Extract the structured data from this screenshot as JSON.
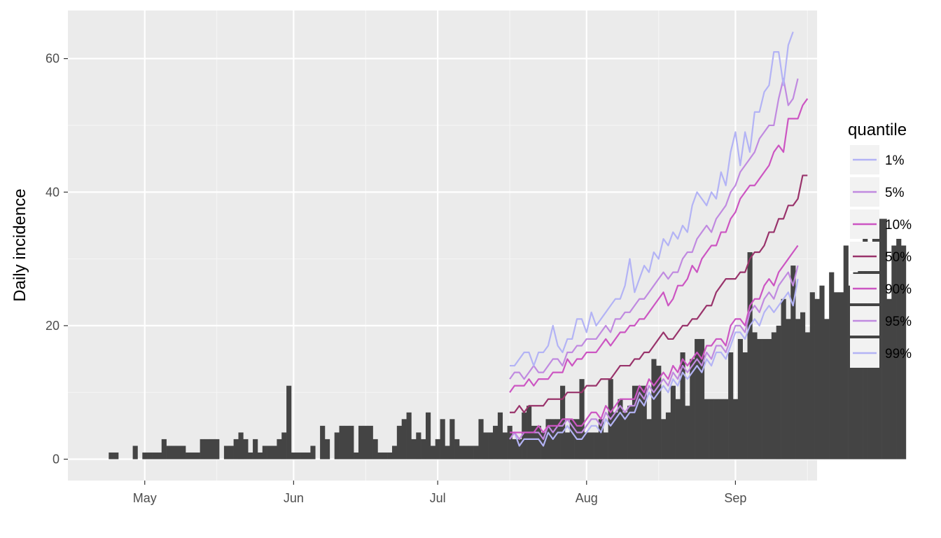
{
  "chart_data": {
    "type": "bar",
    "ylabel": "Daily incidence",
    "xlabel": "",
    "ylim": [
      -3.2,
      67.2
    ],
    "xlim": [
      "2014-04-15",
      "2014-09-18"
    ],
    "y_ticks": [
      0,
      20,
      40,
      60
    ],
    "x_ticks": [
      {
        "date": "2014-05-01",
        "label": "May"
      },
      {
        "date": "2014-06-01",
        "label": "Jun"
      },
      {
        "date": "2014-07-01",
        "label": "Jul"
      },
      {
        "date": "2014-08-01",
        "label": "Aug"
      },
      {
        "date": "2014-09-01",
        "label": "Sep"
      }
    ],
    "x_minor_ticks": [
      "2014-05-16",
      "2014-06-16",
      "2014-07-16",
      "2014-08-16",
      "2014-09-16"
    ],
    "grid": true,
    "bars": {
      "start_date": "2014-04-24",
      "color": "#444444",
      "values": [
        1,
        1,
        0,
        0,
        0,
        2,
        0,
        1,
        1,
        1,
        1,
        3,
        2,
        2,
        2,
        2,
        1,
        1,
        1,
        3,
        3,
        3,
        3,
        0,
        2,
        2,
        3,
        4,
        3,
        1,
        3,
        1,
        2,
        2,
        2,
        3,
        4,
        11,
        1,
        1,
        1,
        1,
        2,
        0,
        5,
        3,
        0,
        4,
        5,
        5,
        5,
        1,
        5,
        5,
        5,
        3,
        1,
        1,
        1,
        2,
        5,
        6,
        7,
        3,
        4,
        3,
        7,
        2,
        3,
        6,
        2,
        6,
        3,
        2,
        2,
        2,
        2,
        6,
        4,
        4,
        5,
        7,
        4,
        5,
        3,
        3,
        7,
        8,
        5,
        5,
        4,
        6,
        6,
        6,
        11,
        4,
        6,
        6,
        12,
        4,
        4,
        4,
        6,
        4,
        12,
        7,
        9,
        7,
        8,
        11,
        11,
        11,
        6,
        15,
        14,
        6,
        7,
        11,
        9,
        16,
        8,
        15,
        18,
        18,
        9,
        9,
        9,
        9,
        9,
        16,
        9,
        18,
        16,
        31,
        19,
        18,
        18,
        18,
        19,
        20,
        24,
        21,
        29,
        21,
        22,
        19,
        25,
        24,
        26,
        21,
        28,
        25,
        25,
        32,
        26,
        28,
        32,
        37,
        30,
        36,
        36,
        36,
        24,
        32,
        33,
        32
      ]
    },
    "legend": {
      "title": "quantile",
      "position": "right",
      "entries": [
        {
          "label": "1%",
          "color": "#b3b3f5"
        },
        {
          "label": "5%",
          "color": "#c08ae0"
        },
        {
          "label": "10%",
          "color": "#cc55c2"
        },
        {
          "label": "50%",
          "color": "#99336b"
        },
        {
          "label": "90%",
          "color": "#cc55c2"
        },
        {
          "label": "95%",
          "color": "#c08ae0"
        },
        {
          "label": "99%",
          "color": "#b3b3f5"
        }
      ]
    },
    "series": [
      {
        "name": "1%",
        "color": "#b3b3f5",
        "start_date": "2014-07-16",
        "values": [
          3,
          4,
          2,
          3,
          3,
          3,
          3,
          2,
          4,
          3,
          4,
          4,
          5,
          4,
          3,
          3,
          4,
          5,
          5,
          4,
          6,
          5,
          6,
          7,
          6,
          7,
          7,
          9,
          8,
          10,
          9,
          10,
          11,
          10,
          12,
          11,
          13,
          12,
          13,
          14,
          13,
          15,
          14,
          16,
          16,
          15,
          17,
          19,
          19,
          18,
          20,
          21,
          20,
          22,
          23,
          22,
          23,
          24,
          25,
          23,
          27
        ]
      },
      {
        "name": "5%",
        "color": "#c08ae0",
        "start_date": "2014-07-16",
        "values": [
          3,
          4,
          3,
          4,
          4,
          4,
          4,
          3,
          5,
          4,
          5,
          5,
          6,
          5,
          4,
          4,
          5,
          6,
          6,
          5,
          7,
          6,
          7,
          8,
          7,
          8,
          8,
          10,
          9,
          11,
          10,
          11,
          12,
          11,
          13,
          12,
          14,
          13,
          14,
          15,
          14,
          16,
          15,
          17,
          17,
          16,
          18,
          20,
          20,
          19,
          22,
          23,
          22,
          24,
          25,
          24,
          26,
          27,
          28,
          26,
          29
        ]
      },
      {
        "name": "10%",
        "color": "#cc55c2",
        "start_date": "2014-07-16",
        "values": [
          4,
          4,
          4,
          4,
          4,
          4,
          5,
          4,
          5,
          5,
          5,
          6,
          6,
          6,
          5,
          5,
          6,
          7,
          7,
          6,
          8,
          7,
          8,
          9,
          9,
          9,
          9,
          11,
          10,
          12,
          11,
          12,
          13,
          12,
          14,
          13,
          15,
          14,
          15,
          16,
          15,
          17,
          17,
          18,
          18,
          17,
          20,
          21,
          21,
          20,
          23,
          24,
          24,
          26,
          27,
          26,
          28,
          29,
          30,
          31,
          32
        ]
      },
      {
        "name": "50%",
        "color": "#99336b",
        "start_date": "2014-07-16",
        "values": [
          7,
          7,
          8,
          7,
          8,
          8,
          8,
          8,
          9,
          9,
          9,
          9,
          10,
          10,
          10,
          10,
          11,
          11,
          11,
          12,
          12,
          12,
          13,
          14,
          14,
          14,
          15,
          15,
          16,
          16,
          17,
          18,
          19,
          18,
          18,
          19,
          20,
          20,
          21,
          21,
          22,
          23,
          23,
          25,
          26,
          27,
          27,
          27,
          28,
          28,
          30,
          31,
          31,
          32,
          34,
          34,
          36,
          36,
          38,
          38,
          39,
          42.5,
          42.5
        ]
      },
      {
        "name": "90%",
        "color": "#cc55c2",
        "start_date": "2014-07-16",
        "values": [
          10,
          11,
          11,
          11,
          12,
          11,
          12,
          12,
          12,
          13,
          13,
          13,
          15,
          14,
          15,
          15,
          16,
          16,
          16,
          17,
          18,
          17,
          18,
          19,
          19,
          20,
          20,
          21,
          21,
          22,
          23,
          24,
          25,
          23,
          24,
          26,
          26,
          27,
          29,
          28,
          30,
          31,
          32,
          32,
          34,
          34,
          36,
          37,
          39,
          40,
          41,
          41,
          42,
          43,
          44,
          46,
          47,
          46,
          51,
          51,
          51,
          53,
          54
        ]
      },
      {
        "name": "95%",
        "color": "#c08ae0",
        "start_date": "2014-07-16",
        "values": [
          12,
          13,
          13,
          12,
          13,
          14,
          13,
          13,
          14,
          15,
          15,
          14,
          16,
          16,
          17,
          17,
          18,
          18,
          18,
          19,
          20,
          19,
          21,
          21,
          22,
          22,
          23,
          24,
          24,
          25,
          26,
          27,
          28,
          27,
          28,
          28,
          30,
          31,
          31,
          33,
          34,
          35,
          34,
          36,
          37,
          38,
          40,
          41,
          43,
          44,
          45,
          46,
          48,
          49,
          50,
          50,
          54,
          57,
          53,
          54,
          57
        ]
      },
      {
        "name": "99%",
        "color": "#b3b3f5",
        "start_date": "2014-07-16",
        "values": [
          14,
          14,
          15,
          16,
          16,
          14,
          16,
          16,
          17,
          20,
          17,
          16,
          18,
          18,
          21,
          21,
          19,
          22,
          20,
          21,
          22,
          23,
          24,
          24,
          26,
          30,
          25,
          27,
          29,
          28,
          31,
          30,
          33,
          32,
          34,
          33,
          35,
          34,
          38,
          40,
          39,
          38,
          40,
          39,
          43,
          41,
          46,
          49,
          44,
          49,
          46,
          52,
          52,
          55,
          56,
          61,
          61,
          56,
          62,
          64
        ]
      }
    ]
  }
}
